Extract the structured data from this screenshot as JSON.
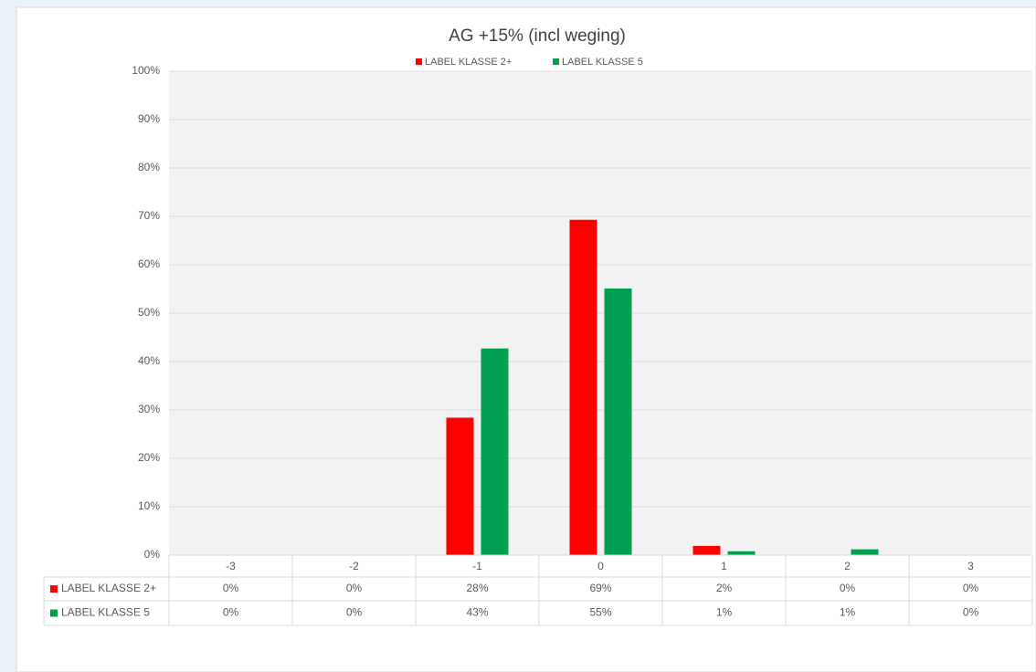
{
  "chart_data": {
    "type": "bar",
    "title": "AG +15% (incl weging)",
    "categories": [
      "-3",
      "-2",
      "-1",
      "0",
      "1",
      "2",
      "3"
    ],
    "series": [
      {
        "name": "LABEL KLASSE 2+",
        "color": "#ff0000",
        "values": [
          0,
          0,
          28.4,
          69.3,
          1.9,
          0,
          0
        ],
        "value_labels": [
          "0%",
          "0%",
          "28%",
          "69%",
          "2%",
          "0%",
          "0%"
        ]
      },
      {
        "name": "LABEL KLASSE 5",
        "color": "#00a050",
        "values": [
          0,
          0,
          42.7,
          55.1,
          0.8,
          1.2,
          0
        ],
        "value_labels": [
          "0%",
          "0%",
          "43%",
          "55%",
          "1%",
          "1%",
          "0%"
        ]
      }
    ],
    "ylim": [
      0,
      100
    ],
    "yticks": [
      {
        "value": 0,
        "label": "0%"
      },
      {
        "value": 10,
        "label": "10%"
      },
      {
        "value": 20,
        "label": "20%"
      },
      {
        "value": 30,
        "label": "30%"
      },
      {
        "value": 40,
        "label": "40%"
      },
      {
        "value": 50,
        "label": "50%"
      },
      {
        "value": 60,
        "label": "60%"
      },
      {
        "value": 70,
        "label": "70%"
      },
      {
        "value": 80,
        "label": "80%"
      },
      {
        "value": 90,
        "label": "90%"
      },
      {
        "value": 100,
        "label": "100%"
      }
    ],
    "grid": true,
    "legend": "top",
    "data_table": true
  }
}
